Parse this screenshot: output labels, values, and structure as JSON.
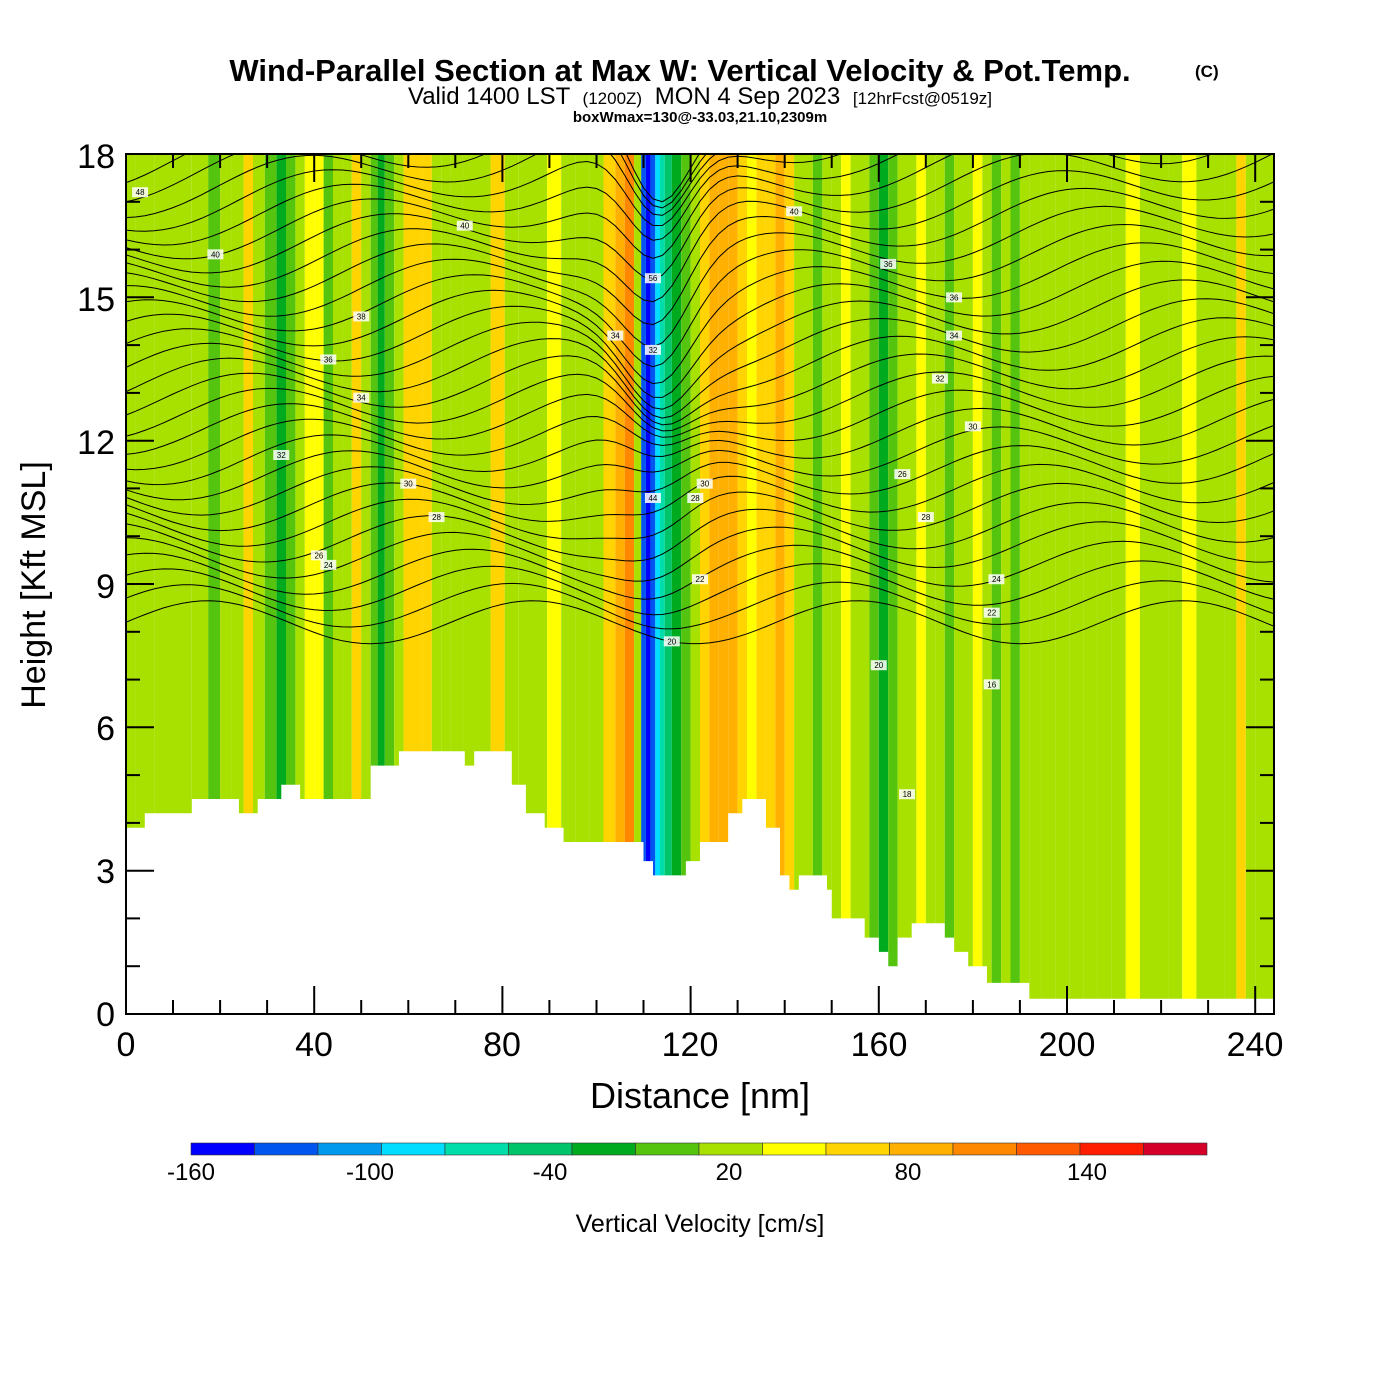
{
  "chart_data": {
    "type": "heatmap",
    "title": "Wind-Parallel Section at Max W: Vertical Velocity & Pot.Temp.",
    "title_mark": "(C)",
    "subtitle_main": "Valid 1400 LST",
    "subtitle_z": "(1200Z)",
    "subtitle_date": "MON 4 Sep 2023",
    "subtitle_fcst": "[12hrFcst@0519z]",
    "subtitle2": "boxWmax=130@-33.03,21.10,2309m",
    "xlabel": "Distance [nm]",
    "ylabel": "Height [Kft MSL]",
    "xlim": [
      0,
      244
    ],
    "ylim": [
      0,
      18
    ],
    "x_ticks": [
      "0",
      "40",
      "80",
      "120",
      "160",
      "200",
      "240"
    ],
    "y_ticks": [
      "0",
      "3",
      "6",
      "9",
      "12",
      "15",
      "18"
    ],
    "colorbar": {
      "label": "Vertical Velocity [cm/s]",
      "tick_labels": [
        "-160",
        "-100",
        "-40",
        "20",
        "80",
        "140"
      ],
      "colors": [
        "#0000ff",
        "#0055ee",
        "#0099ee",
        "#00ddff",
        "#00ddaa",
        "#00c46a",
        "#00aa1e",
        "#55c40f",
        "#a8e000",
        "#ffff00",
        "#ffd400",
        "#ffb000",
        "#ff8800",
        "#ff5a00",
        "#ff1e00",
        "#d4002a"
      ]
    },
    "columns": [
      {
        "x": 0,
        "w": 14
      },
      {
        "x": 4,
        "w": 10
      },
      {
        "x": 8,
        "w": 14
      },
      {
        "x": 12,
        "w": 14
      },
      {
        "x": 16,
        "w": 0
      },
      {
        "x": 19,
        "w": -20
      },
      {
        "x": 21,
        "w": 0
      },
      {
        "x": 24,
        "w": 14
      },
      {
        "x": 26,
        "w": 40
      },
      {
        "x": 28,
        "w": 14
      },
      {
        "x": 31,
        "w": -20
      },
      {
        "x": 33,
        "w": -40
      },
      {
        "x": 35,
        "w": -20
      },
      {
        "x": 37,
        "w": 14
      },
      {
        "x": 39,
        "w": 38
      },
      {
        "x": 41,
        "w": 20
      },
      {
        "x": 43,
        "w": -20
      },
      {
        "x": 45,
        "w": 0
      },
      {
        "x": 47,
        "w": 14
      },
      {
        "x": 49,
        "w": 40
      },
      {
        "x": 51,
        "w": 14
      },
      {
        "x": 53,
        "w": -20
      },
      {
        "x": 54,
        "w": -40
      },
      {
        "x": 56,
        "w": -20
      },
      {
        "x": 58,
        "w": 14
      },
      {
        "x": 60,
        "w": 40
      },
      {
        "x": 62,
        "w": 50
      },
      {
        "x": 64,
        "w": 40
      },
      {
        "x": 66,
        "w": 14
      },
      {
        "x": 68,
        "w": 0
      },
      {
        "x": 70,
        "w": 14
      },
      {
        "x": 73,
        "w": 0
      },
      {
        "x": 76,
        "w": 14
      },
      {
        "x": 79,
        "w": 40
      },
      {
        "x": 82,
        "w": 14
      },
      {
        "x": 85,
        "w": 0
      },
      {
        "x": 88,
        "w": 14
      },
      {
        "x": 91,
        "w": 20
      },
      {
        "x": 94,
        "w": 14
      },
      {
        "x": 97,
        "w": 0
      },
      {
        "x": 100,
        "w": 14
      },
      {
        "x": 103,
        "w": 40
      },
      {
        "x": 105,
        "w": 60
      },
      {
        "x": 107,
        "w": 80
      },
      {
        "x": 109,
        "w": 14
      },
      {
        "x": 110,
        "w": -140
      },
      {
        "x": 111,
        "w": -160
      },
      {
        "x": 112,
        "w": -140
      },
      {
        "x": 113,
        "w": -100
      },
      {
        "x": 114,
        "w": -80
      },
      {
        "x": 115,
        "w": -60
      },
      {
        "x": 117,
        "w": -40
      },
      {
        "x": 119,
        "w": -20
      },
      {
        "x": 121,
        "w": 14
      },
      {
        "x": 123,
        "w": 40
      },
      {
        "x": 125,
        "w": 60
      },
      {
        "x": 127,
        "w": 70
      },
      {
        "x": 129,
        "w": 60
      },
      {
        "x": 131,
        "w": 40
      },
      {
        "x": 133,
        "w": 30
      },
      {
        "x": 135,
        "w": 40
      },
      {
        "x": 137,
        "w": 50
      },
      {
        "x": 139,
        "w": 60
      },
      {
        "x": 141,
        "w": 40
      },
      {
        "x": 143,
        "w": 14
      },
      {
        "x": 145,
        "w": 0
      },
      {
        "x": 147,
        "w": -20
      },
      {
        "x": 149,
        "w": 0
      },
      {
        "x": 151,
        "w": 14
      },
      {
        "x": 153,
        "w": 30
      },
      {
        "x": 155,
        "w": 14
      },
      {
        "x": 157,
        "w": 0
      },
      {
        "x": 159,
        "w": -20
      },
      {
        "x": 161,
        "w": -40
      },
      {
        "x": 163,
        "w": -20
      },
      {
        "x": 165,
        "w": 0
      },
      {
        "x": 167,
        "w": 14
      },
      {
        "x": 169,
        "w": 30
      },
      {
        "x": 171,
        "w": 14
      },
      {
        "x": 173,
        "w": 0
      },
      {
        "x": 175,
        "w": -20
      },
      {
        "x": 177,
        "w": 0
      },
      {
        "x": 179,
        "w": 14
      },
      {
        "x": 181,
        "w": 30
      },
      {
        "x": 183,
        "w": 14
      },
      {
        "x": 185,
        "w": -20
      },
      {
        "x": 187,
        "w": 0
      },
      {
        "x": 189,
        "w": -20
      },
      {
        "x": 191,
        "w": 0
      },
      {
        "x": 193,
        "w": 14
      },
      {
        "x": 196,
        "w": 0
      },
      {
        "x": 199,
        "w": 14
      },
      {
        "x": 202,
        "w": 0
      },
      {
        "x": 205,
        "w": 14
      },
      {
        "x": 208,
        "w": 0
      },
      {
        "x": 211,
        "w": 14
      },
      {
        "x": 214,
        "w": 20
      },
      {
        "x": 217,
        "w": 14
      },
      {
        "x": 220,
        "w": 0
      },
      {
        "x": 223,
        "w": 14
      },
      {
        "x": 226,
        "w": 30
      },
      {
        "x": 229,
        "w": 14
      },
      {
        "x": 232,
        "w": 0
      },
      {
        "x": 235,
        "w": 14
      },
      {
        "x": 237,
        "w": 40
      },
      {
        "x": 239,
        "w": 14
      },
      {
        "x": 241,
        "w": 0
      },
      {
        "x": 244,
        "w": 14
      }
    ],
    "terrain": [
      [
        0,
        3.9
      ],
      [
        4,
        3.9
      ],
      [
        4,
        4.2
      ],
      [
        14,
        4.2
      ],
      [
        14,
        4.5
      ],
      [
        24,
        4.5
      ],
      [
        24,
        4.2
      ],
      [
        28,
        4.2
      ],
      [
        28,
        4.5
      ],
      [
        33,
        4.5
      ],
      [
        33,
        4.8
      ],
      [
        37,
        4.8
      ],
      [
        37,
        4.5
      ],
      [
        52,
        4.5
      ],
      [
        52,
        5.2
      ],
      [
        58,
        5.2
      ],
      [
        58,
        5.5
      ],
      [
        72,
        5.5
      ],
      [
        72,
        5.2
      ],
      [
        74,
        5.2
      ],
      [
        74,
        5.5
      ],
      [
        82,
        5.5
      ],
      [
        82,
        4.8
      ],
      [
        85,
        4.8
      ],
      [
        85,
        4.2
      ],
      [
        89,
        4.2
      ],
      [
        89,
        3.9
      ],
      [
        93,
        3.9
      ],
      [
        93,
        3.6
      ],
      [
        110,
        3.6
      ],
      [
        110,
        3.2
      ],
      [
        112,
        3.2
      ],
      [
        112,
        2.9
      ],
      [
        119,
        2.9
      ],
      [
        119,
        3.2
      ],
      [
        122,
        3.2
      ],
      [
        122,
        3.6
      ],
      [
        128,
        3.6
      ],
      [
        128,
        4.2
      ],
      [
        131,
        4.2
      ],
      [
        131,
        4.5
      ],
      [
        136,
        4.5
      ],
      [
        136,
        3.9
      ],
      [
        139,
        3.9
      ],
      [
        139,
        2.9
      ],
      [
        141,
        2.9
      ],
      [
        141,
        2.6
      ],
      [
        143,
        2.6
      ],
      [
        143,
        2.9
      ],
      [
        149,
        2.9
      ],
      [
        149,
        2.6
      ],
      [
        150,
        2.6
      ],
      [
        150,
        2.0
      ],
      [
        157,
        2.0
      ],
      [
        157,
        1.6
      ],
      [
        160,
        1.6
      ],
      [
        160,
        1.3
      ],
      [
        162,
        1.3
      ],
      [
        162,
        1.0
      ],
      [
        164,
        1.0
      ],
      [
        164,
        1.6
      ],
      [
        167,
        1.6
      ],
      [
        167,
        1.9
      ],
      [
        174,
        1.9
      ],
      [
        174,
        1.6
      ],
      [
        176,
        1.6
      ],
      [
        176,
        1.3
      ],
      [
        179,
        1.3
      ],
      [
        179,
        1.0
      ],
      [
        183,
        1.0
      ],
      [
        183,
        0.65
      ],
      [
        192,
        0.65
      ],
      [
        192,
        0.32
      ],
      [
        244,
        0.32
      ]
    ],
    "contour_labels": [
      "48",
      "40",
      "40",
      "40",
      "38",
      "36",
      "36",
      "36",
      "34",
      "34",
      "34",
      "32",
      "32",
      "32",
      "30",
      "30",
      "30",
      "28",
      "28",
      "28",
      "26",
      "26",
      "24",
      "24",
      "22",
      "22",
      "20",
      "20",
      "18",
      "16",
      "44",
      "56"
    ]
  }
}
